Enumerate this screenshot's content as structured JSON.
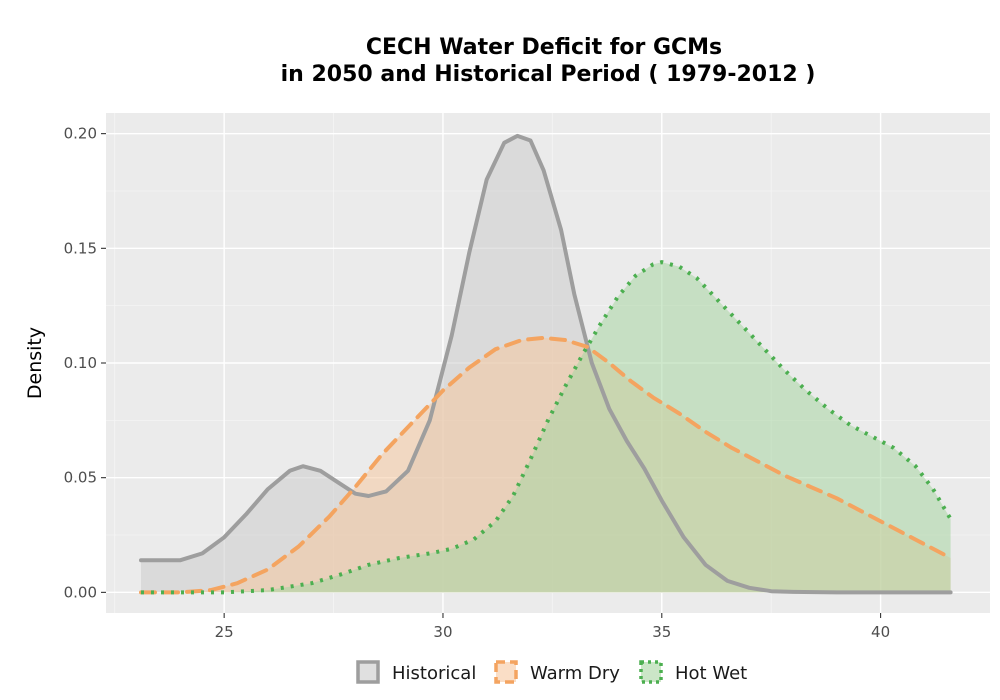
{
  "chart_data": {
    "type": "area",
    "title": "CECH  Water Deficit for GCMs",
    "subtitle": "in 2050 and Historical Period ( 1979-2012 )",
    "xlabel": "",
    "ylabel": "Density",
    "xlim": [
      22.3,
      42.5
    ],
    "ylim": [
      -0.009,
      0.209
    ],
    "x_ticks": [
      25,
      30,
      35,
      40
    ],
    "y_ticks": [
      0.0,
      0.05,
      0.1,
      0.15,
      0.2
    ],
    "y_tick_labels": [
      "0.00",
      "0.05",
      "0.10",
      "0.15",
      "0.20"
    ],
    "grid": true,
    "legend_position": "bottom",
    "series": [
      {
        "name": "Historical",
        "line_color": "#9e9e9e",
        "fill_color": "#cccccc",
        "line_style": "solid",
        "x": [
          23.1,
          23.5,
          24.0,
          24.5,
          25.0,
          25.5,
          26.0,
          26.5,
          26.8,
          27.2,
          27.6,
          28.0,
          28.3,
          28.7,
          29.2,
          29.7,
          30.2,
          30.6,
          31.0,
          31.4,
          31.7,
          32.0,
          32.3,
          32.7,
          33.0,
          33.4,
          33.8,
          34.2,
          34.6,
          35.0,
          35.5,
          36.0,
          36.5,
          37.0,
          37.5,
          38.0,
          39.0,
          40.0,
          41.0,
          41.6
        ],
        "y": [
          0.014,
          0.014,
          0.014,
          0.017,
          0.024,
          0.034,
          0.045,
          0.053,
          0.055,
          0.053,
          0.048,
          0.043,
          0.042,
          0.044,
          0.053,
          0.075,
          0.112,
          0.148,
          0.18,
          0.196,
          0.199,
          0.197,
          0.184,
          0.158,
          0.13,
          0.1,
          0.08,
          0.066,
          0.054,
          0.04,
          0.024,
          0.012,
          0.005,
          0.002,
          0.0005,
          0.0002,
          0.0,
          0.0,
          0.0,
          0.0
        ]
      },
      {
        "name": "Warm Dry",
        "line_color": "#f4a460",
        "fill_color": "#f6c8a0",
        "line_style": "dashed",
        "x": [
          23.1,
          24.0,
          24.7,
          25.3,
          26.0,
          26.7,
          27.4,
          28.0,
          28.6,
          29.3,
          30.0,
          30.6,
          31.2,
          31.8,
          32.3,
          32.8,
          33.3,
          33.8,
          34.3,
          34.8,
          35.4,
          36.0,
          36.6,
          37.2,
          37.8,
          38.4,
          39.0,
          39.6,
          40.2,
          40.8,
          41.6
        ],
        "y": [
          0.0,
          0.0,
          0.001,
          0.004,
          0.01,
          0.02,
          0.033,
          0.046,
          0.06,
          0.074,
          0.088,
          0.098,
          0.106,
          0.11,
          0.111,
          0.11,
          0.107,
          0.1,
          0.092,
          0.085,
          0.078,
          0.07,
          0.063,
          0.057,
          0.051,
          0.046,
          0.041,
          0.035,
          0.029,
          0.023,
          0.015
        ]
      },
      {
        "name": "Hot Wet",
        "line_color": "#4caf50",
        "fill_color": "#a8d5a2",
        "line_style": "dotted",
        "x": [
          23.1,
          24.0,
          25.0,
          26.0,
          27.0,
          27.7,
          28.3,
          29.0,
          29.7,
          30.2,
          30.7,
          31.2,
          31.6,
          32.0,
          32.4,
          32.8,
          33.2,
          33.6,
          34.0,
          34.4,
          34.8,
          35.0,
          35.4,
          35.8,
          36.3,
          36.8,
          37.3,
          37.8,
          38.3,
          38.8,
          39.3,
          39.8,
          40.3,
          40.8,
          41.2,
          41.6
        ],
        "y": [
          0.0,
          0.0,
          0.0,
          0.001,
          0.004,
          0.008,
          0.012,
          0.015,
          0.017,
          0.019,
          0.023,
          0.031,
          0.042,
          0.058,
          0.075,
          0.09,
          0.104,
          0.117,
          0.129,
          0.138,
          0.143,
          0.144,
          0.142,
          0.137,
          0.127,
          0.117,
          0.107,
          0.097,
          0.088,
          0.08,
          0.073,
          0.068,
          0.063,
          0.055,
          0.045,
          0.032
        ]
      }
    ]
  }
}
